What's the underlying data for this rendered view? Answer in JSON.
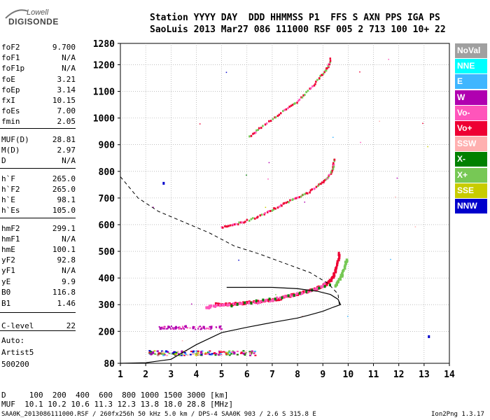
{
  "logo": {
    "line1": "Lowell",
    "line2": "DIGISONDE"
  },
  "header": {
    "line1": "Station YYYY DAY  DDD HHMMSS P1  FFS S AXN PPS IGA PS",
    "line2": "SaoLuis 2013 Mar27 086 111000 RSF 005 2 713 100 10+ 22"
  },
  "params": [
    {
      "label": "foF2",
      "value": "9.700"
    },
    {
      "label": "foF1",
      "value": "N/A"
    },
    {
      "label": "foF1p",
      "value": "N/A"
    },
    {
      "label": "foE",
      "value": "3.21"
    },
    {
      "label": "foEp",
      "value": "3.14"
    },
    {
      "label": "fxI",
      "value": "10.15"
    },
    {
      "label": "foEs",
      "value": "7.00"
    },
    {
      "label": "fmin",
      "value": "2.05"
    },
    {
      "label": "MUF(D)",
      "value": "28.81"
    },
    {
      "label": "M(D)",
      "value": "2.97"
    },
    {
      "label": "D",
      "value": "N/A"
    },
    {
      "label": "h`F",
      "value": "265.0"
    },
    {
      "label": "h`F2",
      "value": "265.0"
    },
    {
      "label": "h`E",
      "value": "98.1"
    },
    {
      "label": "h`Es",
      "value": "105.0"
    },
    {
      "label": "hmF2",
      "value": "299.1"
    },
    {
      "label": "hmF1",
      "value": "N/A"
    },
    {
      "label": "hmE",
      "value": "100.1"
    },
    {
      "label": "yF2",
      "value": "92.8"
    },
    {
      "label": "yF1",
      "value": "N/A"
    },
    {
      "label": "yE",
      "value": "9.9"
    },
    {
      "label": "B0",
      "value": "116.8"
    },
    {
      "label": "B1",
      "value": "1.46"
    },
    {
      "label": "C-level",
      "value": "22"
    }
  ],
  "auto": {
    "line1": "Auto:",
    "line2": "Artist5",
    "line3": "500200"
  },
  "legend": [
    {
      "label": "NoVal",
      "color": "#a0a0a0"
    },
    {
      "label": "NNE",
      "color": "#00ffff"
    },
    {
      "label": "E",
      "color": "#3fb6ff"
    },
    {
      "label": "W",
      "color": "#b000b0"
    },
    {
      "label": "Vo-",
      "color": "#ff55bb"
    },
    {
      "label": "Vo+",
      "color": "#ee0033"
    },
    {
      "label": "SSW",
      "color": "#ffb0b0"
    },
    {
      "label": "X-",
      "color": "#008000"
    },
    {
      "label": "X+",
      "color": "#77c855"
    },
    {
      "label": "SSE",
      "color": "#c8cc00"
    },
    {
      "label": "NNW",
      "color": "#0000cc"
    }
  ],
  "footer": {
    "line1": "D     100  200  400  600  800 1000 1500 3000 [km]",
    "line2": "MUF  10.1 10.2 10.6 11.3 12.3 13.8 18.0 28.8 [MHz]",
    "line3": "SAA0K_2013086111000.RSF / 260fx256h 50 kHz 5.0 km / DPS-4 SAA0K 903 / 2.6 S 315.8 E",
    "version": "Ion2Png 1.3.17"
  },
  "chart_data": {
    "type": "scatter",
    "title": "",
    "xlabel": "",
    "ylabel": "",
    "xlim": [
      1,
      14
    ],
    "ylim": [
      80,
      1280
    ],
    "xticks": [
      1,
      2,
      3,
      4,
      5,
      6,
      7,
      8,
      9,
      10,
      11,
      12,
      13,
      14
    ],
    "yticks": [
      80,
      200,
      300,
      400,
      500,
      600,
      700,
      800,
      900,
      1000,
      1100,
      1200,
      1280
    ],
    "grid": "dotted",
    "legend_position": "right",
    "series": [
      {
        "name": "Vo+",
        "color": "#ee0033",
        "points": [
          [
            4.8,
            302
          ],
          [
            5.0,
            300
          ],
          [
            5.3,
            301
          ],
          [
            5.6,
            303
          ],
          [
            6.0,
            307
          ],
          [
            6.4,
            310
          ],
          [
            6.8,
            315
          ],
          [
            7.2,
            320
          ],
          [
            7.6,
            330
          ],
          [
            8.0,
            340
          ],
          [
            8.4,
            350
          ],
          [
            8.7,
            358
          ],
          [
            9.0,
            370
          ],
          [
            9.2,
            380
          ],
          [
            9.4,
            400
          ],
          [
            9.5,
            425
          ],
          [
            9.6,
            460
          ],
          [
            9.65,
            490
          ]
        ]
      },
      {
        "name": "Vo-",
        "color": "#ff55bb",
        "points": [
          [
            4.4,
            286
          ],
          [
            4.6,
            294
          ],
          [
            5.2,
            299
          ],
          [
            6.2,
            305
          ],
          [
            7.0,
            318
          ],
          [
            7.8,
            335
          ],
          [
            8.6,
            355
          ],
          [
            9.1,
            376
          ]
        ]
      },
      {
        "name": "X+",
        "color": "#77c855",
        "points": [
          [
            9.5,
            370
          ],
          [
            9.6,
            385
          ],
          [
            9.7,
            400
          ],
          [
            9.8,
            420
          ],
          [
            9.9,
            450
          ],
          [
            9.95,
            470
          ]
        ]
      },
      {
        "name": "X-",
        "color": "#008000",
        "points": [
          [
            5.4,
            298
          ],
          [
            7.4,
            325
          ],
          [
            9.3,
            375
          ]
        ]
      },
      {
        "name": "W",
        "color": "#b000b0",
        "points": [
          [
            2.6,
            213
          ],
          [
            2.9,
            215
          ],
          [
            3.2,
            214
          ],
          [
            3.6,
            216
          ],
          [
            3.9,
            214
          ],
          [
            4.3,
            215
          ],
          [
            4.6,
            213
          ],
          [
            4.9,
            214
          ],
          [
            2.3,
            122
          ],
          [
            3.4,
            123
          ],
          [
            4.2,
            122
          ],
          [
            5.5,
            121
          ]
        ]
      },
      {
        "name": "NNW",
        "color": "#0000cc",
        "points": [
          [
            13.2,
            182
          ],
          [
            2.7,
            756
          ]
        ]
      }
    ],
    "model_profile": {
      "name": "true height profile",
      "points": [
        [
          1,
          80
        ],
        [
          2,
          82
        ],
        [
          3,
          95
        ],
        [
          4,
          150
        ],
        [
          5,
          195
        ],
        [
          6,
          215
        ],
        [
          7,
          233
        ],
        [
          8,
          250
        ],
        [
          8.5,
          262
        ],
        [
          9.0,
          275
        ],
        [
          9.4,
          290
        ],
        [
          9.7,
          300
        ],
        [
          9.6,
          320
        ],
        [
          9.3,
          338
        ],
        [
          8.8,
          350
        ],
        [
          8.0,
          360
        ],
        [
          7.0,
          365
        ],
        [
          6.0,
          365
        ],
        [
          5.2,
          365
        ]
      ]
    },
    "model_dashed": {
      "points": [
        [
          1,
          780
        ],
        [
          1.7,
          700
        ],
        [
          2.5,
          650
        ],
        [
          3.5,
          610
        ],
        [
          4.5,
          570
        ],
        [
          5.5,
          520
        ],
        [
          6.5,
          490
        ],
        [
          7.5,
          455
        ],
        [
          8.5,
          420
        ],
        [
          9.2,
          380
        ],
        [
          9.6,
          340
        ],
        [
          9.65,
          300
        ]
      ]
    },
    "multihop": [
      {
        "color": "#ee0033",
        "points": [
          [
            5.0,
            590
          ],
          [
            5.4,
            598
          ],
          [
            5.8,
            608
          ],
          [
            6.3,
            625
          ],
          [
            6.8,
            648
          ],
          [
            7.2,
            665
          ],
          [
            7.6,
            685
          ],
          [
            8.0,
            700
          ],
          [
            8.4,
            720
          ],
          [
            8.8,
            745
          ],
          [
            9.1,
            765
          ],
          [
            9.3,
            790
          ],
          [
            9.4,
            815
          ],
          [
            9.45,
            845
          ]
        ]
      },
      {
        "color": "#ee0033",
        "points": [
          [
            6.1,
            930
          ],
          [
            6.5,
            960
          ],
          [
            7.0,
            995
          ],
          [
            7.5,
            1030
          ],
          [
            7.9,
            1055
          ],
          [
            8.3,
            1090
          ],
          [
            8.7,
            1130
          ],
          [
            9.0,
            1165
          ],
          [
            9.2,
            1190
          ],
          [
            9.3,
            1220
          ]
        ]
      }
    ]
  }
}
